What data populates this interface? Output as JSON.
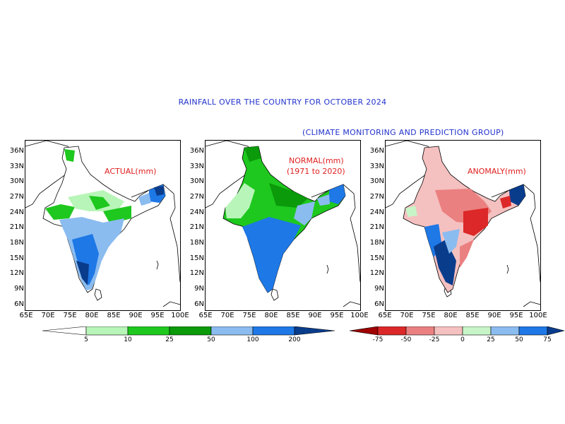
{
  "title": "RAINFALL OVER THE COUNTRY FOR OCTOBER 2024",
  "subtitle": "(CLIMATE MONITORING AND PREDICTION GROUP)",
  "panels": [
    {
      "label_line1": "ACTUAL(mm)",
      "label_line2": ""
    },
    {
      "label_line1": "NORMAL(mm)",
      "label_line2": "(1971 to 2020)"
    },
    {
      "label_line1": "ANOMALY(mm)",
      "label_line2": ""
    }
  ],
  "y_ticks": [
    "36N",
    "33N",
    "30N",
    "27N",
    "24N",
    "21N",
    "18N",
    "15N",
    "12N",
    "9N",
    "6N"
  ],
  "x_ticks": [
    "65E",
    "70E",
    "75E",
    "80E",
    "85E",
    "90E",
    "95E",
    "100E"
  ],
  "rainfall_legend": {
    "labels": [
      "5",
      "10",
      "25",
      "50",
      "100",
      "200"
    ],
    "colors": [
      "#ffffff",
      "#b8f5b8",
      "#1ec81e",
      "#0a9a0a",
      "#8bbcf0",
      "#1e78e6",
      "#0a3c8c"
    ]
  },
  "anomaly_legend": {
    "labels": [
      "-75",
      "-50",
      "-25",
      "0",
      "25",
      "50",
      "75"
    ],
    "colors": [
      "#a00000",
      "#dc2828",
      "#eb8080",
      "#f5c0c0",
      "#c8f5c8",
      "#8bbcf0",
      "#1e78e6",
      "#0a3c8c"
    ]
  }
}
